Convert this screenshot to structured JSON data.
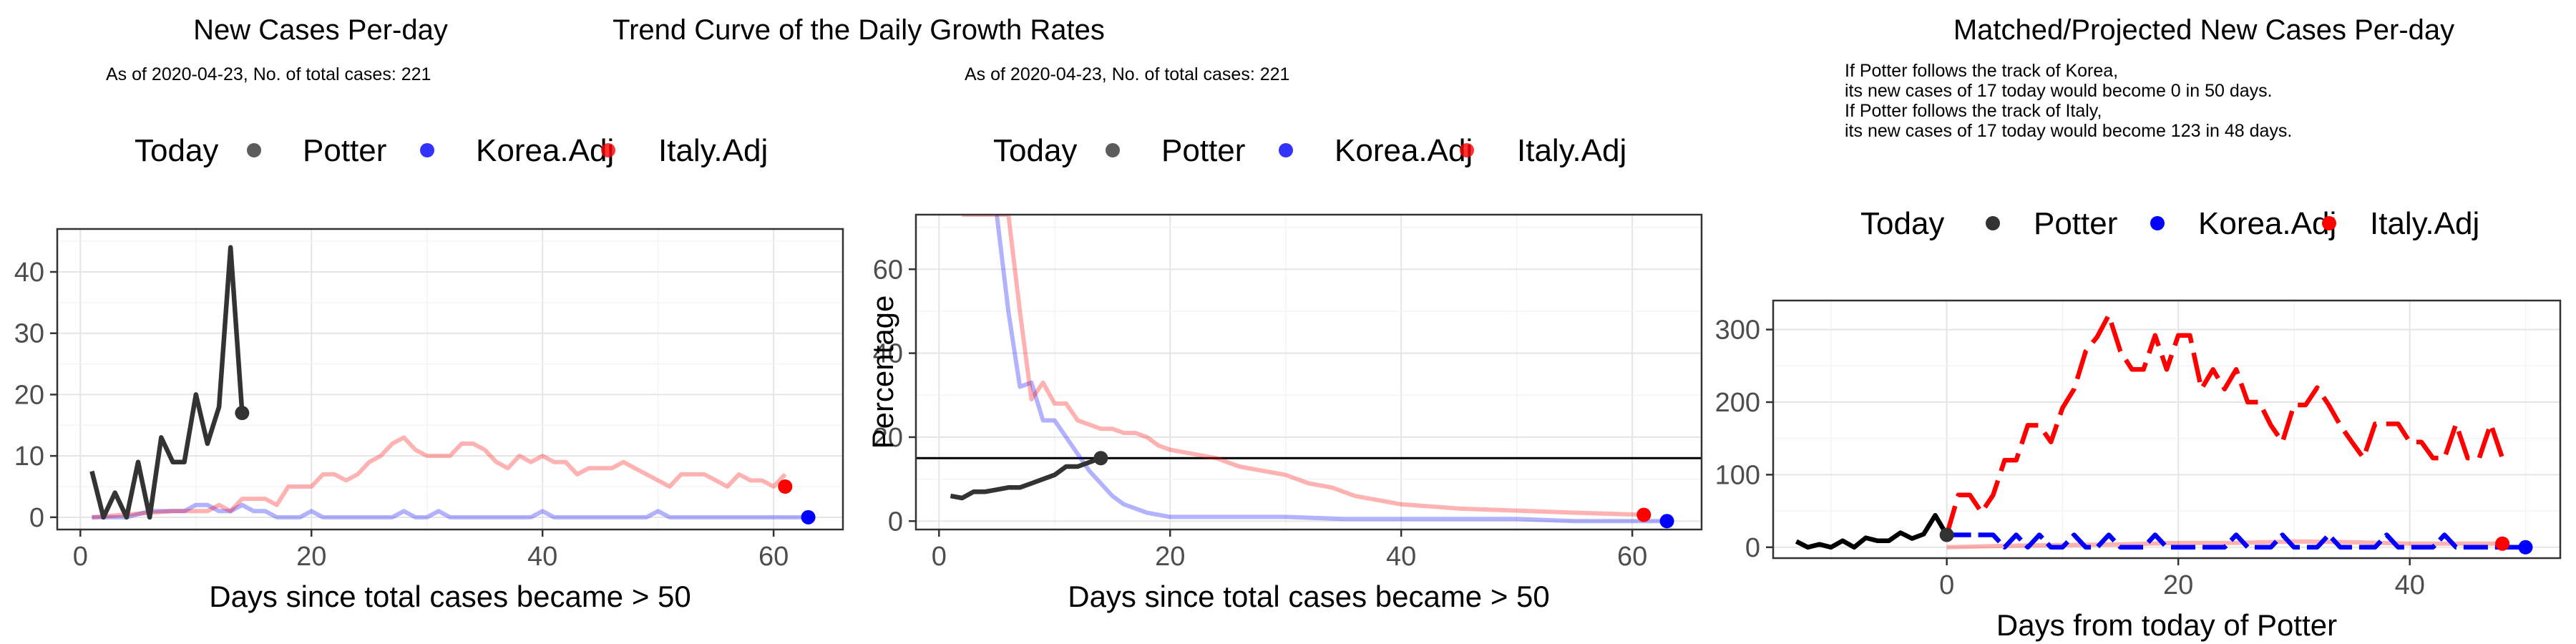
{
  "colors": {
    "potter": "#333333",
    "korea": "#0000ff",
    "italy": "#ff0000",
    "today": "#000000"
  },
  "chart_data": [
    {
      "type": "line",
      "title": "New Cases Per-day",
      "subtitle_lines": [
        "As of 2020-04-23, No. of total cases: 221"
      ],
      "xlabel": "Days since total cases became > 50",
      "ylabel": "",
      "xlim": [
        -2,
        66
      ],
      "ylim": [
        -2,
        47
      ],
      "xticks": [
        0,
        20,
        40,
        60
      ],
      "yticks": [
        0,
        10,
        20,
        30,
        40
      ],
      "grid": true,
      "legend": {
        "placement": "top",
        "title": "Today",
        "entries": [
          "Potter",
          "Korea.Adj",
          "Italy.Adj"
        ]
      },
      "series": [
        {
          "name": "Potter",
          "color": "#333333",
          "opacity": 1,
          "x": [
            1,
            2,
            3,
            4,
            5,
            6,
            7,
            8,
            9,
            10,
            11,
            12,
            13,
            14
          ],
          "y": [
            7.5,
            0,
            4,
            0,
            9,
            0,
            13,
            9,
            9,
            20,
            12,
            18,
            44,
            17
          ]
        },
        {
          "name": "Korea.Adj",
          "color": "#0000ff",
          "opacity": 0.3,
          "x": [
            1,
            4,
            6,
            7,
            8,
            9,
            10,
            11,
            12,
            13,
            14,
            15,
            16,
            17,
            18,
            19,
            20,
            21,
            22,
            23,
            24,
            25,
            26,
            27,
            28,
            29,
            30,
            31,
            32,
            33,
            34,
            35,
            36,
            37,
            38,
            39,
            40,
            41,
            42,
            43,
            44,
            45,
            46,
            47,
            48,
            49,
            50,
            51,
            52,
            53,
            54,
            55,
            56,
            57,
            58,
            59,
            60,
            61,
            62,
            63
          ],
          "y": [
            0,
            0,
            1,
            1,
            1,
            1,
            2,
            2,
            1,
            1,
            2,
            1,
            1,
            0,
            0,
            0,
            1,
            0,
            0,
            0,
            0,
            0,
            0,
            0,
            1,
            0,
            0,
            1,
            0,
            0,
            0,
            0,
            0,
            0,
            0,
            0,
            1,
            0,
            0,
            0,
            0,
            0,
            0,
            0,
            0,
            0,
            1,
            0,
            0,
            0,
            0,
            0,
            0,
            0,
            0,
            0,
            0,
            0,
            0,
            0
          ]
        },
        {
          "name": "Italy.Adj",
          "color": "#ff0000",
          "opacity": 0.3,
          "x": [
            1,
            8,
            10,
            11,
            12,
            13,
            14,
            15,
            16,
            17,
            18,
            19,
            20,
            21,
            22,
            23,
            24,
            25,
            26,
            27,
            28,
            29,
            30,
            31,
            32,
            33,
            34,
            35,
            36,
            37,
            38,
            39,
            40,
            41,
            42,
            43,
            44,
            45,
            46,
            47,
            48,
            49,
            50,
            51,
            52,
            53,
            54,
            55,
            56,
            57,
            58,
            59,
            60,
            61
          ],
          "y": [
            0,
            1,
            1,
            1,
            2,
            1,
            3,
            3,
            3,
            2,
            5,
            5,
            5,
            7,
            7,
            6,
            7,
            9,
            10,
            12,
            13,
            11,
            10,
            10,
            10,
            12,
            12,
            11,
            9,
            8,
            10,
            9,
            10,
            9,
            9,
            7,
            8,
            8,
            8,
            9,
            8,
            7,
            6,
            5,
            7,
            7,
            7,
            6,
            5,
            7,
            6,
            6,
            5,
            7
          ]
        }
      ],
      "today_points": [
        {
          "series": "Potter",
          "x": 14,
          "y": 17
        },
        {
          "series": "Korea.Adj",
          "x": 63,
          "y": 0
        },
        {
          "series": "Italy.Adj",
          "x": 61,
          "y": 5
        }
      ]
    },
    {
      "type": "line",
      "title": "Trend Curve of the Daily Growth Rates",
      "subtitle_lines": [
        "As of 2020-04-23, No. of total cases: 221"
      ],
      "xlabel": "Days since total cases became > 50",
      "ylabel": "Percentage",
      "xlim": [
        -2,
        66
      ],
      "ylim": [
        -2,
        73
      ],
      "xticks": [
        0,
        20,
        40,
        60
      ],
      "yticks": [
        0,
        20,
        40,
        60
      ],
      "grid": true,
      "hline": 15,
      "legend": {
        "placement": "top",
        "title": "Today",
        "entries": [
          "Potter",
          "Korea.Adj",
          "Italy.Adj"
        ]
      },
      "series": [
        {
          "name": "Potter",
          "color": "#333333",
          "opacity": 1,
          "x": [
            1,
            2,
            3,
            4,
            5,
            6,
            7,
            8,
            9,
            10,
            11,
            12,
            13,
            14
          ],
          "y": [
            6,
            5.5,
            7,
            7,
            7.5,
            8,
            8,
            9,
            10,
            11,
            13,
            13,
            14,
            15
          ]
        },
        {
          "name": "Korea.Adj",
          "color": "#0000ff",
          "opacity": 0.3,
          "x": [
            5,
            6,
            7,
            8,
            9,
            10,
            11,
            12,
            13,
            14,
            15,
            16,
            17,
            18,
            20,
            22,
            24,
            26,
            28,
            30,
            35,
            40,
            45,
            50,
            55,
            60,
            63
          ],
          "y": [
            73,
            50,
            32,
            33,
            24,
            24,
            20,
            16,
            12,
            9,
            6,
            4,
            3,
            2,
            1,
            1,
            1,
            1,
            1,
            1,
            0.5,
            0.5,
            0.5,
            0.5,
            0,
            0,
            0
          ]
        },
        {
          "name": "Italy.Adj",
          "color": "#ff0000",
          "opacity": 0.3,
          "x": [
            2,
            6,
            7,
            8,
            9,
            10,
            11,
            12,
            13,
            14,
            15,
            16,
            17,
            18,
            19,
            20,
            22,
            24,
            26,
            28,
            30,
            32,
            34,
            36,
            38,
            40,
            45,
            50,
            55,
            61
          ],
          "y": [
            73,
            73,
            50,
            29,
            33,
            28,
            28,
            24,
            23,
            22,
            22,
            21,
            21,
            20,
            18,
            17,
            16,
            15,
            13,
            12,
            11,
            9,
            8,
            6,
            5,
            4,
            3,
            2.5,
            2,
            1.5
          ]
        }
      ],
      "today_points": [
        {
          "series": "Potter",
          "x": 14,
          "y": 15
        },
        {
          "series": "Korea.Adj",
          "x": 63,
          "y": 0
        },
        {
          "series": "Italy.Adj",
          "x": 61,
          "y": 1.5
        }
      ]
    },
    {
      "type": "line",
      "title": "Matched/Projected New Cases Per-day",
      "subtitle_lines": [
        "If Potter follows the track of Korea,",
        "its new cases of 17 today would become 0 in 50 days.",
        "If Potter follows the track of Italy,",
        "its new cases of 17 today would become 123 in 48 days."
      ],
      "xlabel": "Days from today of Potter",
      "ylabel": "",
      "xlim": [
        -15,
        53
      ],
      "ylim": [
        -15,
        340
      ],
      "xticks": [
        0,
        20,
        40
      ],
      "yticks": [
        0,
        100,
        200,
        300
      ],
      "grid": true,
      "legend": {
        "placement": "top",
        "title": "Today",
        "entries": [
          "Potter",
          "Korea.Adj",
          "Italy.Adj"
        ]
      },
      "series": [
        {
          "name": "Potter",
          "color": "#000000",
          "opacity": 1,
          "dash": "none",
          "x": [
            -13,
            -12,
            -11,
            -10,
            -9,
            -8,
            -7,
            -6,
            -5,
            -4,
            -3,
            -2,
            -1,
            0
          ],
          "y": [
            8,
            0,
            4,
            0,
            9,
            0,
            13,
            9,
            9,
            20,
            12,
            18,
            44,
            17
          ]
        },
        {
          "name": "Korea.Adj",
          "color": "#0000ff",
          "opacity": 1,
          "dash": "34,10",
          "x": [
            0,
            1,
            2,
            3,
            4,
            5,
            6,
            7,
            8,
            9,
            10,
            11,
            12,
            13,
            14,
            15,
            16,
            17,
            18,
            19,
            20,
            21,
            22,
            23,
            24,
            25,
            26,
            27,
            28,
            29,
            30,
            31,
            32,
            33,
            34,
            35,
            36,
            37,
            38,
            39,
            40,
            41,
            42,
            43,
            44,
            45,
            46,
            47,
            48,
            49,
            50
          ],
          "y": [
            17,
            17,
            17,
            17,
            17,
            0,
            17,
            0,
            17,
            0,
            0,
            17,
            0,
            0,
            17,
            0,
            0,
            0,
            17,
            0,
            0,
            0,
            0,
            0,
            0,
            17,
            0,
            0,
            0,
            17,
            0,
            0,
            0,
            17,
            0,
            0,
            0,
            0,
            17,
            0,
            0,
            0,
            0,
            17,
            0,
            0,
            0,
            0,
            0,
            0,
            0
          ]
        },
        {
          "name": "Italy.Adj",
          "color": "#ff0000",
          "opacity": 1,
          "dash": "42,14",
          "x": [
            0,
            1,
            2,
            3,
            4,
            5,
            6,
            7,
            8,
            9,
            10,
            11,
            12,
            13,
            14,
            15,
            16,
            17,
            18,
            19,
            20,
            21,
            22,
            23,
            24,
            25,
            26,
            27,
            28,
            29,
            30,
            31,
            32,
            33,
            34,
            35,
            36,
            37,
            38,
            39,
            40,
            41,
            42,
            43,
            44,
            45,
            46,
            47,
            48
          ],
          "y": [
            17,
            72,
            72,
            48,
            72,
            120,
            120,
            168,
            168,
            145,
            192,
            218,
            270,
            290,
            320,
            270,
            245,
            245,
            292,
            245,
            292,
            292,
            218,
            245,
            218,
            245,
            200,
            200,
            168,
            145,
            196,
            196,
            220,
            196,
            168,
            145,
            123,
            170,
            170,
            170,
            145,
            145,
            123,
            123,
            170,
            123,
            123,
            170,
            123
          ]
        },
        {
          "name": "Italy-ghost",
          "color": "#ff0000",
          "opacity": 0.3,
          "dash": "none",
          "x": [
            0,
            5,
            10,
            15,
            20,
            25,
            30,
            35,
            40,
            45,
            48
          ],
          "y": [
            0,
            2,
            3,
            4,
            6,
            6,
            8,
            7,
            5,
            5,
            5
          ]
        }
      ],
      "today_points": [
        {
          "series": "Potter",
          "x": 0,
          "y": 17
        },
        {
          "series": "Korea.Adj",
          "x": 50,
          "y": 0
        },
        {
          "series": "Italy.Adj",
          "x": 48,
          "y": 5
        }
      ]
    }
  ]
}
